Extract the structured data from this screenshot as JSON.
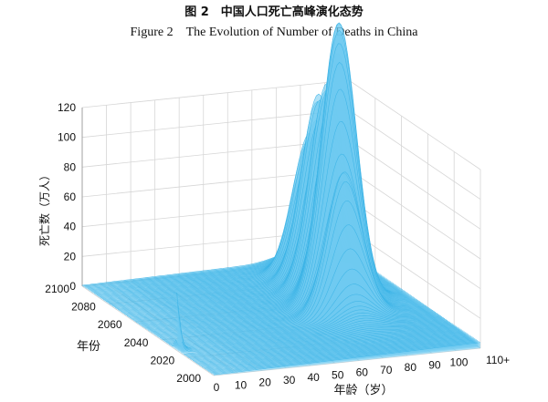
{
  "figure": {
    "title_cn": "图 2　中国人口死亡高峰演化态势",
    "title_en": "Figure 2　The Evolution of Number of Deaths in China"
  },
  "chart_data": {
    "type": "surface",
    "zlabel": "死亡数（万人）",
    "xlabel": "年龄（岁）",
    "ylabel": "年份",
    "z_ticks": [
      "0",
      "20",
      "40",
      "60",
      "80",
      "100",
      "120"
    ],
    "x_ticks": [
      "0",
      "10",
      "20",
      "30",
      "40",
      "50",
      "60",
      "70",
      "80",
      "90",
      "100",
      "110+"
    ],
    "y_ticks": [
      "2000",
      "2020",
      "2040",
      "2060",
      "2080",
      "2100"
    ],
    "zlim": [
      0,
      120
    ],
    "xlim": [
      0,
      110
    ],
    "ylim": [
      2000,
      2100
    ],
    "surface_color": "#6fcaf0",
    "grid": true,
    "ridges": [
      {
        "year": 2040,
        "age": 75,
        "deaths": 70
      },
      {
        "year": 2050,
        "age": 78,
        "deaths": 95
      },
      {
        "year": 2055,
        "age": 82,
        "deaths": 112
      },
      {
        "year": 2065,
        "age": 82,
        "deaths": 95
      },
      {
        "year": 2075,
        "age": 84,
        "deaths": 90
      },
      {
        "year": 2085,
        "age": 86,
        "deaths": 70
      }
    ],
    "infant_peak": {
      "year": 2000,
      "age": 0,
      "deaths": 38
    }
  }
}
